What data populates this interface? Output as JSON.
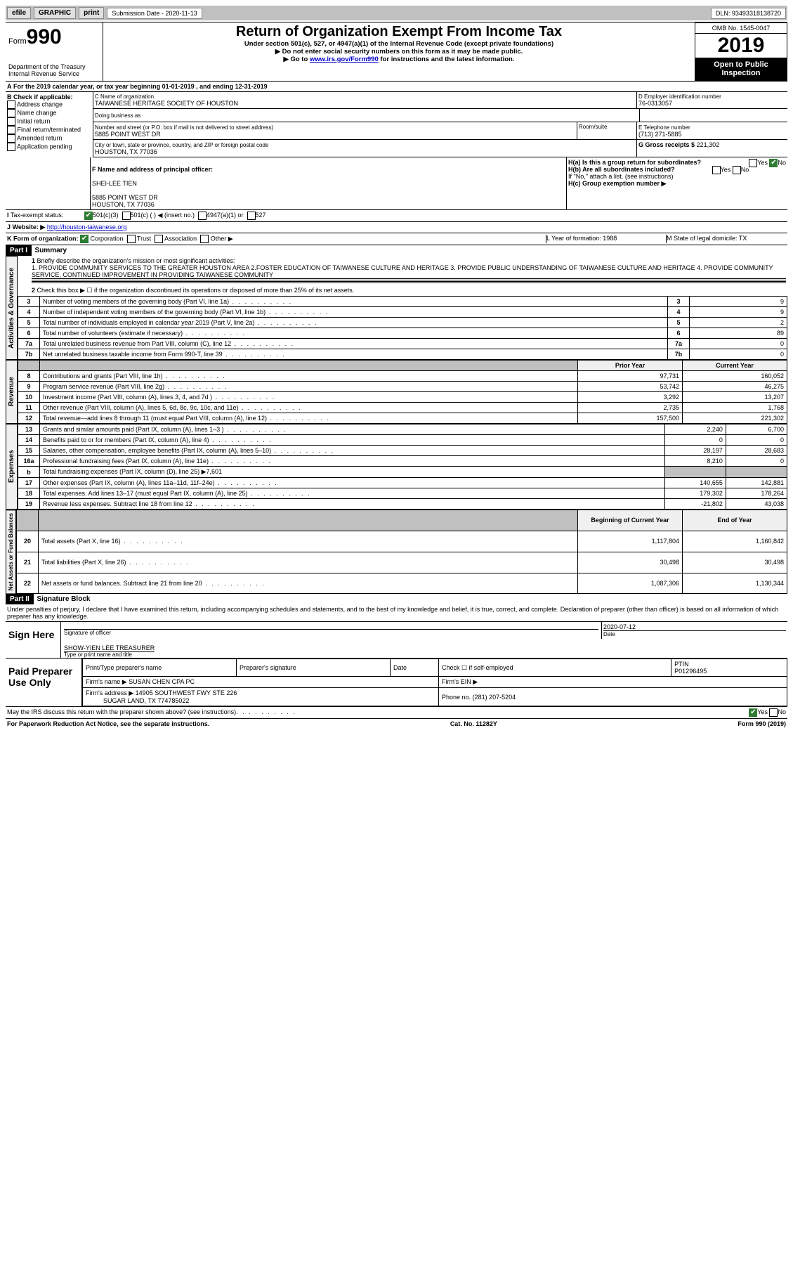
{
  "topbar": {
    "efile": "efile",
    "graphic": "GRAPHIC",
    "print": "print",
    "sub_label": "Submission Date - 2020-11-13",
    "dln": "DLN: 93493318138720"
  },
  "header": {
    "form_prefix": "Form",
    "form_num": "990",
    "title": "Return of Organization Exempt From Income Tax",
    "subtitle": "Under section 501(c), 527, or 4947(a)(1) of the Internal Revenue Code (except private foundations)",
    "note1": "▶ Do not enter social security numbers on this form as it may be made public.",
    "note2_pre": "▶ Go to ",
    "note2_link": "www.irs.gov/Form990",
    "note2_post": " for instructions and the latest information.",
    "dept": "Department of the Treasury\nInternal Revenue Service",
    "omb": "OMB No. 1545-0047",
    "year": "2019",
    "inspect": "Open to Public Inspection"
  },
  "A": {
    "text": "For the 2019 calendar year, or tax year beginning 01-01-2019   , and ending 12-31-2019"
  },
  "B": {
    "label": "B Check if applicable:",
    "items": [
      "Address change",
      "Name change",
      "Initial return",
      "Final return/terminated",
      "Amended return",
      "Application pending"
    ]
  },
  "C": {
    "label": "C Name of organization",
    "name": "TAIWANESE HERITAGE SOCIETY OF HOUSTON",
    "dba": "Doing business as",
    "addr_label": "Number and street (or P.O. box if mail is not delivered to street address)",
    "room": "Room/suite",
    "addr": "5885 POINT WEST DR",
    "city_label": "City or town, state or province, country, and ZIP or foreign postal code",
    "city": "HOUSTON, TX  77036"
  },
  "D": {
    "label": "D Employer identification number",
    "val": "76-0313057"
  },
  "E": {
    "label": "E Telephone number",
    "val": "(713) 271-5885"
  },
  "G": {
    "label": "G Gross receipts $",
    "val": "221,302"
  },
  "F": {
    "label": "F  Name and address of principal officer:",
    "name": "SHEI-LEE TIEN",
    "addr": "5885 POINT WEST DR\nHOUSTON, TX  77036"
  },
  "H": {
    "a": "H(a)  Is this a group return for subordinates?",
    "b": "H(b)  Are all subordinates included?",
    "bnote": "If \"No,\" attach a list. (see instructions)",
    "c": "H(c)  Group exemption number ▶",
    "yes": "Yes",
    "no": "No"
  },
  "I": {
    "label": "Tax-exempt status:",
    "o1": "501(c)(3)",
    "o2": "501(c) (  ) ◀ (insert no.)",
    "o3": "4947(a)(1) or",
    "o4": "527"
  },
  "J": {
    "label": "Website: ▶",
    "val": "http://houston-taiwanese.org"
  },
  "K": {
    "label": "K Form of organization:",
    "o1": "Corporation",
    "o2": "Trust",
    "o3": "Association",
    "o4": "Other ▶"
  },
  "L": {
    "label": "L Year of formation: 1988"
  },
  "M": {
    "label": "M State of legal domicile: TX"
  },
  "part1": {
    "hdr": "Part I",
    "title": "Summary",
    "l1": "Briefly describe the organization's mission or most significant activities:",
    "mission": "1. PROVIDE COMMUNITY SERVICES TO THE GREATER HOUSTON AREA 2.FOSTER EDUCATION OF TAIWANESE CULTURE AND HERITAGE 3. PROVIDE PUBLIC UNDERSTANDING OF TAIWANESE CULTURE AND HERITAGE 4. PROVIDE COMMUNITY SERVICE, CONTINUED IMPROVEMENT IN PROVIDING TAIWANESE COMMUNITY",
    "l2": "Check this box ▶ ☐  if the organization discontinued its operations or disposed of more than 25% of its net assets.",
    "rows_ag": [
      {
        "n": "3",
        "t": "Number of voting members of the governing body (Part VI, line 1a)",
        "v": "9"
      },
      {
        "n": "4",
        "t": "Number of independent voting members of the governing body (Part VI, line 1b)",
        "v": "9"
      },
      {
        "n": "5",
        "t": "Total number of individuals employed in calendar year 2019 (Part V, line 2a)",
        "v": "2"
      },
      {
        "n": "6",
        "t": "Total number of volunteers (estimate if necessary)",
        "v": "89"
      },
      {
        "n": "7a",
        "t": "Total unrelated business revenue from Part VIII, column (C), line 12",
        "v": "0"
      },
      {
        "n": "7b",
        "t": "Net unrelated business taxable income from Form 990-T, line 39",
        "v": "0"
      }
    ],
    "col_prior": "Prior Year",
    "col_curr": "Current Year",
    "rev": [
      {
        "n": "8",
        "t": "Contributions and grants (Part VIII, line 1h)",
        "p": "97,731",
        "c": "160,052"
      },
      {
        "n": "9",
        "t": "Program service revenue (Part VIII, line 2g)",
        "p": "53,742",
        "c": "46,275"
      },
      {
        "n": "10",
        "t": "Investment income (Part VIII, column (A), lines 3, 4, and 7d )",
        "p": "3,292",
        "c": "13,207"
      },
      {
        "n": "11",
        "t": "Other revenue (Part VIII, column (A), lines 5, 6d, 8c, 9c, 10c, and 11e)",
        "p": "2,735",
        "c": "1,768"
      },
      {
        "n": "12",
        "t": "Total revenue—add lines 8 through 11 (must equal Part VIII, column (A), line 12)",
        "p": "157,500",
        "c": "221,302"
      }
    ],
    "exp": [
      {
        "n": "13",
        "t": "Grants and similar amounts paid (Part IX, column (A), lines 1–3 )",
        "p": "2,240",
        "c": "6,700"
      },
      {
        "n": "14",
        "t": "Benefits paid to or for members (Part IX, column (A), line 4)",
        "p": "0",
        "c": "0"
      },
      {
        "n": "15",
        "t": "Salaries, other compensation, employee benefits (Part IX, column (A), lines 5–10)",
        "p": "28,197",
        "c": "28,683"
      },
      {
        "n": "16a",
        "t": "Professional fundraising fees (Part IX, column (A), line 11e)",
        "p": "8,210",
        "c": "0"
      },
      {
        "n": "b",
        "t": "Total fundraising expenses (Part IX, column (D), line 25) ▶7,601",
        "shade": true
      },
      {
        "n": "17",
        "t": "Other expenses (Part IX, column (A), lines 11a–11d, 11f–24e)",
        "p": "140,655",
        "c": "142,881"
      },
      {
        "n": "18",
        "t": "Total expenses. Add lines 13–17 (must equal Part IX, column (A), line 25)",
        "p": "179,302",
        "c": "178,264"
      },
      {
        "n": "19",
        "t": "Revenue less expenses. Subtract line 18 from line 12",
        "p": "-21,802",
        "c": "43,038"
      }
    ],
    "col_beg": "Beginning of Current Year",
    "col_end": "End of Year",
    "net": [
      {
        "n": "20",
        "t": "Total assets (Part X, line 16)",
        "p": "1,117,804",
        "c": "1,160,842"
      },
      {
        "n": "21",
        "t": "Total liabilities (Part X, line 26)",
        "p": "30,498",
        "c": "30,498"
      },
      {
        "n": "22",
        "t": "Net assets or fund balances. Subtract line 21 from line 20",
        "p": "1,087,306",
        "c": "1,130,344"
      }
    ],
    "side_ag": "Activities & Governance",
    "side_rev": "Revenue",
    "side_exp": "Expenses",
    "side_net": "Net Assets or Fund Balances"
  },
  "part2": {
    "hdr": "Part II",
    "title": "Signature Block",
    "decl": "Under penalties of perjury, I declare that I have examined this return, including accompanying schedules and statements, and to the best of my knowledge and belief, it is true, correct, and complete. Declaration of preparer (other than officer) is based on all information of which preparer has any knowledge.",
    "sign_here": "Sign Here",
    "sig_officer": "Signature of officer",
    "date": "Date",
    "date_val": "2020-07-12",
    "printed": "SHOW-YIEN LEE  TREASURER",
    "printed_label": "Type or print name and title",
    "paid": "Paid Preparer Use Only",
    "pp_name": "Print/Type preparer's name",
    "pp_sig": "Preparer's signature",
    "pp_date": "Date",
    "pp_self": "Check ☐ if self-employed",
    "ptin_l": "PTIN",
    "ptin": "P01296495",
    "firm_l": "Firm's name  ▶",
    "firm": "SUSAN CHEN CPA PC",
    "ein_l": "Firm's EIN ▶",
    "addr_l": "Firm's address ▶",
    "addr": "14905 SOUTHWEST FWY STE 226",
    "addr2": "SUGAR LAND, TX  774785022",
    "phone_l": "Phone no.",
    "phone": "(281) 207-5204",
    "may": "May the IRS discuss this return with the preparer shown above? (see instructions)"
  },
  "footer": {
    "l": "For Paperwork Reduction Act Notice, see the separate instructions.",
    "m": "Cat. No. 11282Y",
    "r": "Form 990 (2019)"
  }
}
